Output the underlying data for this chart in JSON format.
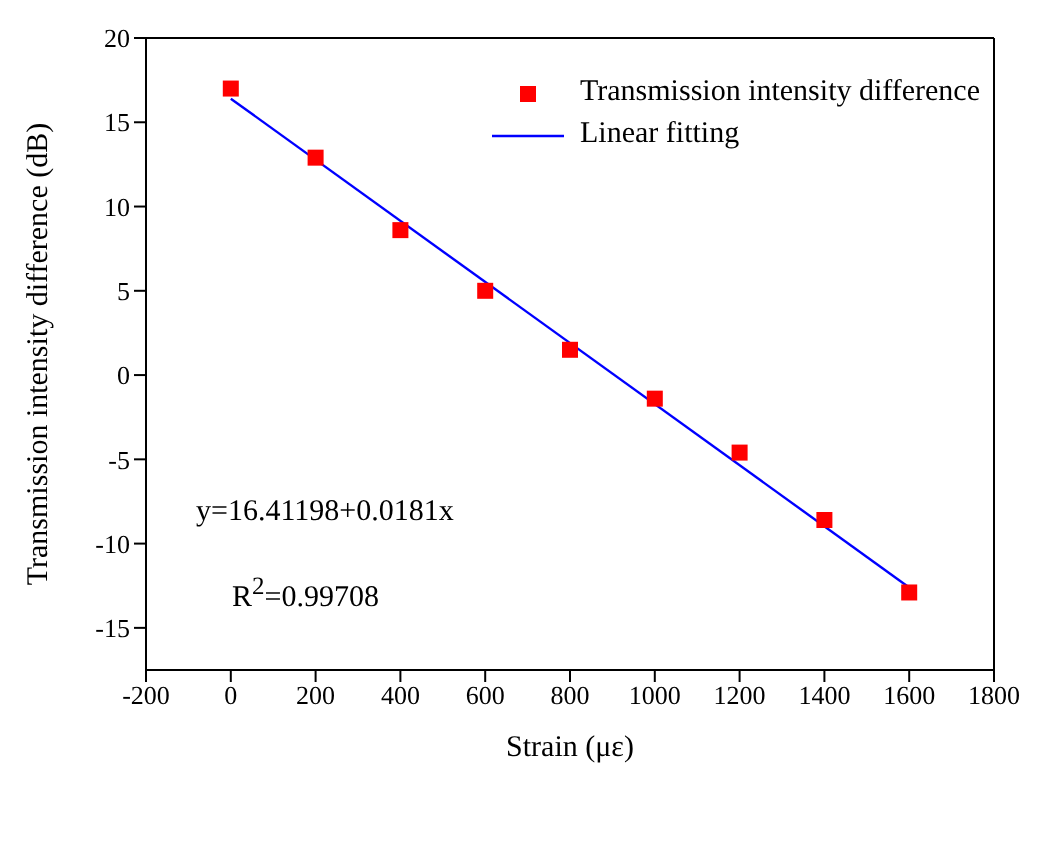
{
  "chart_data": {
    "type": "scatter",
    "xlabel": "Strain (με)",
    "ylabel": "Transmission intensity difference (dB)",
    "xlim": [
      -200,
      1800
    ],
    "xticks": [
      -200,
      0,
      200,
      400,
      600,
      800,
      1000,
      1200,
      1400,
      1600,
      1800
    ],
    "ylim": [
      -17.5,
      20
    ],
    "yticks": [
      -15,
      -10,
      -5,
      0,
      5,
      10,
      15,
      20
    ],
    "legend": "top right",
    "annotations": [
      "y=16.41198+0.0181x",
      "R$^{2}$=0.99708"
    ],
    "series": [
      {
        "name": "Transmission intensity difference",
        "type": "scatter",
        "color": "#ff0000",
        "marker": "square",
        "x": [
          0,
          200,
          400,
          600,
          800,
          1000,
          1200,
          1400,
          1600
        ],
        "values": [
          17.0,
          12.9,
          8.6,
          5.0,
          1.5,
          -1.4,
          -4.6,
          -8.6,
          -12.9
        ]
      },
      {
        "name": "Linear fitting",
        "type": "line",
        "color": "#0000ff",
        "marker": "none",
        "x": [
          0,
          1600
        ],
        "values": [
          16.4,
          -12.6
        ]
      }
    ]
  }
}
